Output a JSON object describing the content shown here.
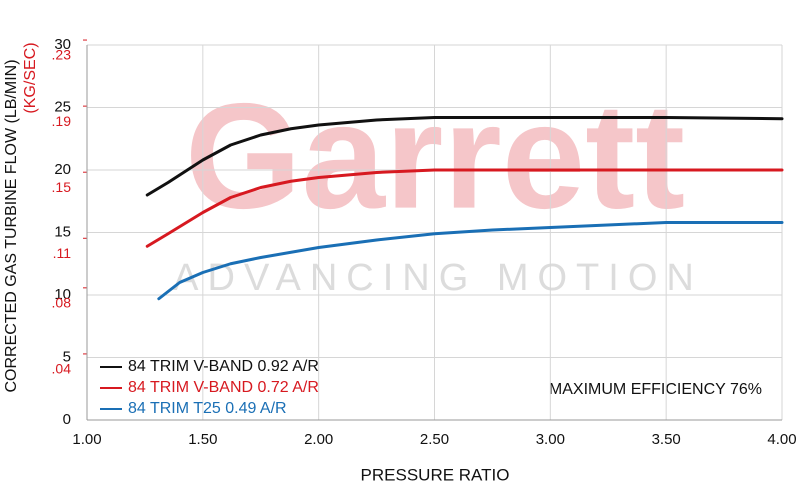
{
  "chart_data": {
    "type": "line",
    "watermark": {
      "logo": "Garrett",
      "tagline": "ADVANCING MOTION"
    },
    "x_label": "PRESSURE RATIO",
    "y_label": "CORRECTED GAS TURBINE FLOW (LB/MIN)",
    "y2_label": "(KG/SEC)",
    "annotation": "MAXIMUM EFFICIENCY 76%",
    "xlim": [
      1.0,
      4.0
    ],
    "xticks": [
      {
        "value": 1.0,
        "label": "1.00"
      },
      {
        "value": 1.5,
        "label": "1.50"
      },
      {
        "value": 2.0,
        "label": "2.00"
      },
      {
        "value": 2.5,
        "label": "2.50"
      },
      {
        "value": 3.0,
        "label": "3.00"
      },
      {
        "value": 3.5,
        "label": "3.50"
      },
      {
        "value": 4.0,
        "label": "4.00"
      }
    ],
    "ylim": [
      0,
      30
    ],
    "yticks": [
      0,
      5,
      10,
      15,
      20,
      25,
      30
    ],
    "y2lim": [
      0,
      0.227
    ],
    "y2ticks": [
      {
        "value": 0.04,
        "label": ".04"
      },
      {
        "value": 0.08,
        "label": ".08"
      },
      {
        "value": 0.11,
        "label": ".11"
      },
      {
        "value": 0.15,
        "label": ".15"
      },
      {
        "value": 0.19,
        "label": ".19"
      },
      {
        "value": 0.23,
        "label": ".23"
      }
    ],
    "grid": true,
    "legend": "lower left",
    "series": [
      {
        "name": "84 TRIM V-BAND 0.92 A/R",
        "color": "#111111",
        "x": [
          1.26,
          1.35,
          1.5,
          1.62,
          1.75,
          1.88,
          2.0,
          2.25,
          2.5,
          3.0,
          3.5,
          4.0
        ],
        "values": [
          18.0,
          19.0,
          20.8,
          22.0,
          22.8,
          23.3,
          23.6,
          24.0,
          24.2,
          24.2,
          24.2,
          24.1
        ]
      },
      {
        "name": "84 TRIM V-BAND 0.72 A/R",
        "color": "#d71920",
        "x": [
          1.26,
          1.35,
          1.5,
          1.62,
          1.75,
          1.88,
          2.0,
          2.25,
          2.5,
          3.0,
          3.5,
          4.0
        ],
        "values": [
          13.9,
          14.9,
          16.6,
          17.8,
          18.6,
          19.1,
          19.4,
          19.8,
          20.0,
          20.0,
          20.0,
          20.0
        ]
      },
      {
        "name": "84 TRIM T25 0.49 A/R",
        "color": "#1a6fb5",
        "x": [
          1.31,
          1.4,
          1.5,
          1.62,
          1.75,
          2.0,
          2.25,
          2.5,
          2.75,
          3.0,
          3.5,
          4.0
        ],
        "values": [
          9.7,
          11.0,
          11.8,
          12.5,
          13.0,
          13.8,
          14.4,
          14.9,
          15.2,
          15.4,
          15.8,
          15.8
        ]
      }
    ]
  }
}
